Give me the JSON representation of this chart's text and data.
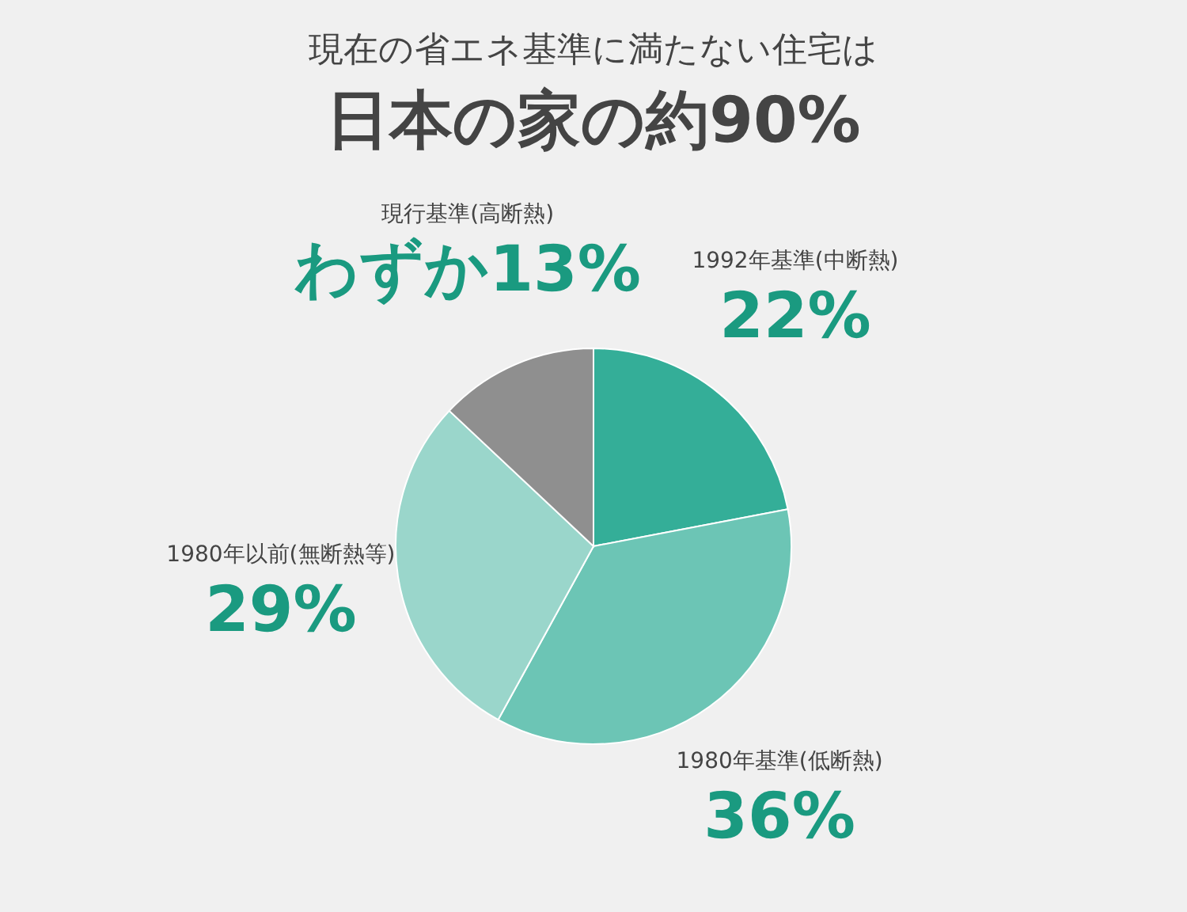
{
  "chart_data": {
    "type": "pie",
    "title": "現在の省エネ基準に満たない住宅は",
    "subtitle": "日本の家の約90%",
    "categories": [
      "1992年基準(中断熱)",
      "1980年基準(低断熱)",
      "1980年以前(無断熱等)",
      "現行基準(高断熱)"
    ],
    "values": [
      22,
      36,
      29,
      13
    ],
    "colors": [
      "#34ae98",
      "#6cc5b5",
      "#9ad6cb",
      "#8f8f8f"
    ],
    "value_labels": [
      "22%",
      "36%",
      "29%",
      "わずか13%"
    ]
  }
}
